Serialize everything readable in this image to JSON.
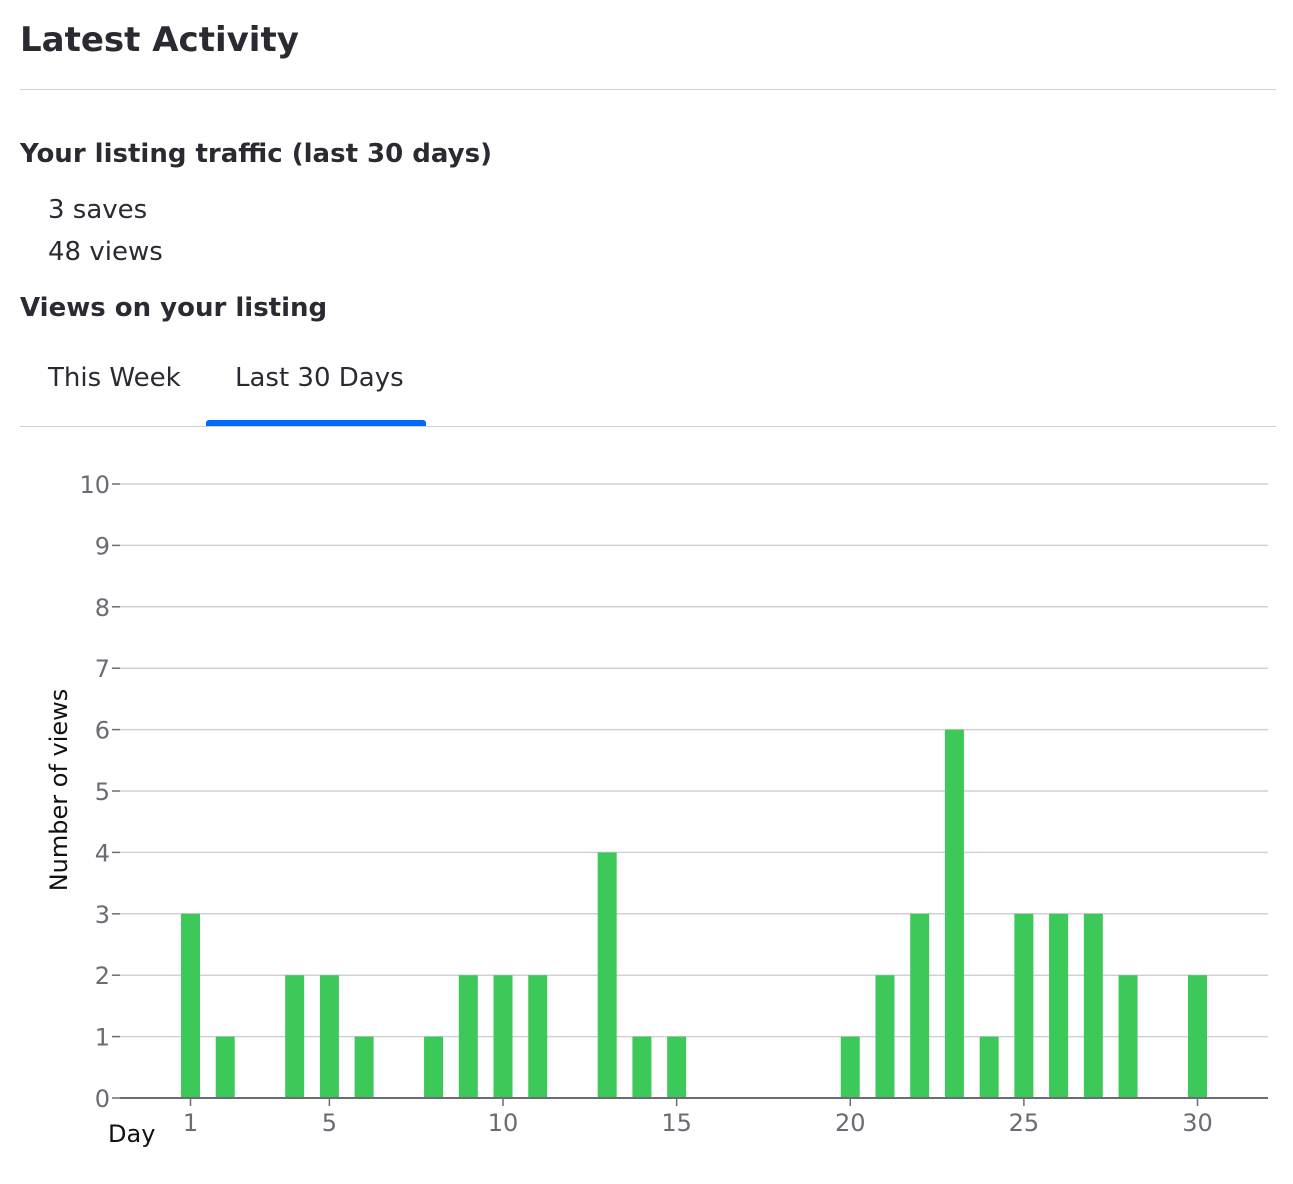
{
  "page": {
    "title": "Latest Activity"
  },
  "traffic": {
    "title": "Your listing traffic (last 30 days)",
    "saves": "3 saves",
    "views": "48 views"
  },
  "views_section": {
    "title": "Views on your listing"
  },
  "tabs": [
    {
      "label": "This Week",
      "selected": false
    },
    {
      "label": "Last 30 Days",
      "selected": true
    }
  ],
  "colors": {
    "accent": "#006aff",
    "bar": "#3dc85a",
    "grid": "#d1d1d5",
    "axis": "#6b6b73"
  },
  "chart_data": {
    "type": "bar",
    "title": "",
    "xlabel": "Day",
    "ylabel": "Number of views",
    "x": [
      1,
      2,
      3,
      4,
      5,
      6,
      7,
      8,
      9,
      10,
      11,
      12,
      13,
      14,
      15,
      16,
      17,
      18,
      19,
      20,
      21,
      22,
      23,
      24,
      25,
      26,
      27,
      28,
      29,
      30
    ],
    "values": [
      3,
      1,
      0,
      2,
      2,
      1,
      0,
      1,
      2,
      2,
      2,
      0,
      4,
      1,
      1,
      0,
      0,
      0,
      0,
      1,
      2,
      3,
      6,
      1,
      3,
      3,
      3,
      2,
      0,
      2
    ],
    "x_ticks": [
      1,
      5,
      10,
      15,
      20,
      25,
      30
    ],
    "y_ticks": [
      0,
      1,
      2,
      3,
      4,
      5,
      6,
      7,
      8,
      9,
      10
    ],
    "ylim": [
      0,
      10
    ],
    "grid": true,
    "legend": "none"
  }
}
